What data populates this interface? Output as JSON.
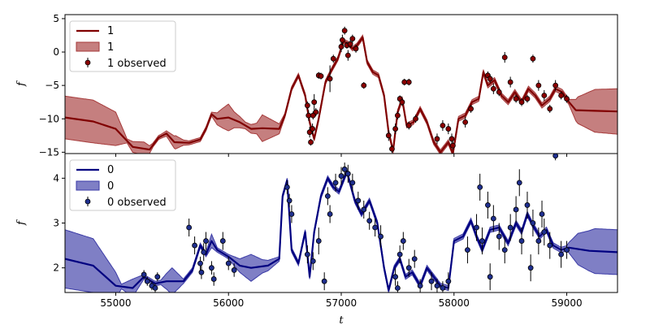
{
  "chart_data": [
    {
      "type": "line",
      "panel": "top",
      "xlabel": "",
      "ylabel": "f",
      "xlim": [
        54550,
        59450
      ],
      "ylim": [
        -15.2,
        5.6
      ],
      "yticks": [
        5,
        0,
        -5,
        -10,
        -15
      ],
      "xticks": [
        55000,
        56000,
        57000,
        58000,
        59000
      ],
      "show_xtick_labels": false,
      "grid": false,
      "legend_position": "upper-left",
      "colors": {
        "line": "#800000",
        "band": "#a63a3a",
        "points": "#8b0000"
      },
      "legend": [
        "1",
        "1",
        "1 observed"
      ],
      "mean": [
        [
          54550,
          -9.8
        ],
        [
          54800,
          -10.4
        ],
        [
          55000,
          -11.5
        ],
        [
          55150,
          -14.2
        ],
        [
          55300,
          -14.6
        ],
        [
          55380,
          -12.8
        ],
        [
          55450,
          -12.2
        ],
        [
          55520,
          -13.5
        ],
        [
          55650,
          -13.6
        ],
        [
          55750,
          -13.1
        ],
        [
          55800,
          -11.5
        ],
        [
          55850,
          -9.3
        ],
        [
          55900,
          -10.0
        ],
        [
          56000,
          -9.8
        ],
        [
          56100,
          -10.5
        ],
        [
          56200,
          -11.5
        ],
        [
          56300,
          -11.4
        ],
        [
          56450,
          -11.5
        ],
        [
          56500,
          -9.5
        ],
        [
          56560,
          -5.5
        ],
        [
          56620,
          -3.5
        ],
        [
          56680,
          -6.5
        ],
        [
          56720,
          -10.5
        ],
        [
          56760,
          -13.0
        ],
        [
          56800,
          -10.0
        ],
        [
          56860,
          -4.5
        ],
        [
          56920,
          -2.5
        ],
        [
          56970,
          -1.0
        ],
        [
          57020,
          1.6
        ],
        [
          57060,
          1.3
        ],
        [
          57100,
          0.5
        ],
        [
          57140,
          1.0
        ],
        [
          57190,
          2.2
        ],
        [
          57230,
          -1.5
        ],
        [
          57280,
          -3.0
        ],
        [
          57330,
          -3.5
        ],
        [
          57380,
          -6.5
        ],
        [
          57420,
          -12.0
        ],
        [
          57460,
          -14.8
        ],
        [
          57500,
          -9.0
        ],
        [
          57540,
          -7.0
        ],
        [
          57580,
          -11.0
        ],
        [
          57640,
          -10.5
        ],
        [
          57700,
          -8.5
        ],
        [
          57760,
          -10.5
        ],
        [
          57820,
          -13.5
        ],
        [
          57880,
          -15.0
        ],
        [
          57950,
          -13.5
        ],
        [
          57990,
          -15.2
        ],
        [
          58040,
          -10.0
        ],
        [
          58100,
          -9.5
        ],
        [
          58160,
          -7.5
        ],
        [
          58220,
          -7.0
        ],
        [
          58260,
          -3.0
        ],
        [
          58300,
          -5.0
        ],
        [
          58360,
          -4.2
        ],
        [
          58420,
          -6.5
        ],
        [
          58480,
          -7.5
        ],
        [
          58540,
          -6.0
        ],
        [
          58600,
          -7.5
        ],
        [
          58660,
          -5.5
        ],
        [
          58720,
          -6.5
        ],
        [
          58780,
          -8.0
        ],
        [
          58850,
          -7.0
        ],
        [
          58900,
          -5.5
        ],
        [
          58960,
          -6.0
        ],
        [
          59020,
          -7.5
        ],
        [
          59080,
          -8.7
        ],
        [
          59250,
          -8.8
        ],
        [
          59450,
          -8.9
        ]
      ],
      "band_halfwidth": [
        [
          54550,
          3.2
        ],
        [
          54800,
          3.2
        ],
        [
          55000,
          2.5
        ],
        [
          55100,
          0.3
        ],
        [
          55150,
          0.8
        ],
        [
          55250,
          1.0
        ],
        [
          55330,
          0.3
        ],
        [
          55400,
          0.3
        ],
        [
          55450,
          0.4
        ],
        [
          55530,
          1.0
        ],
        [
          55600,
          0.4
        ],
        [
          55650,
          0.3
        ],
        [
          55800,
          0.3
        ],
        [
          55850,
          0.3
        ],
        [
          55950,
          1.5
        ],
        [
          56000,
          2.0
        ],
        [
          56050,
          1.2
        ],
        [
          56150,
          0.5
        ],
        [
          56250,
          0.8
        ],
        [
          56300,
          2.0
        ],
        [
          56420,
          1.0
        ],
        [
          56500,
          0.3
        ],
        [
          59020,
          0.4
        ],
        [
          59100,
          2.0
        ],
        [
          59250,
          3.2
        ],
        [
          59450,
          3.4
        ]
      ],
      "observed": [
        [
          56700,
          -8.0,
          0.6
        ],
        [
          56710,
          -9.5,
          0.8
        ],
        [
          56720,
          -12.0,
          0.8
        ],
        [
          56730,
          -13.5,
          0.5
        ],
        [
          56745,
          -11.5,
          0.8
        ],
        [
          56760,
          -7.5,
          1.2
        ],
        [
          56775,
          -9.0,
          0.6
        ],
        [
          56800,
          -3.5,
          0.5
        ],
        [
          56820,
          -3.6,
          0.5
        ],
        [
          56900,
          -4.0,
          2.0
        ],
        [
          57000,
          0.8,
          0.8
        ],
        [
          57010,
          1.8,
          0.8
        ],
        [
          57030,
          3.2,
          0.6
        ],
        [
          57050,
          1.0,
          0.5
        ],
        [
          57060,
          -0.5,
          0.8
        ],
        [
          57080,
          1.2,
          0.6
        ],
        [
          57100,
          2.0,
          0.6
        ],
        [
          57200,
          -5.0,
          0.5
        ],
        [
          57420,
          -12.5,
          0.8
        ],
        [
          57450,
          -14.5,
          0.6
        ],
        [
          57480,
          -11.5,
          0.8
        ],
        [
          57500,
          -9.5,
          0.6
        ],
        [
          57520,
          -7.0,
          0.5
        ],
        [
          57540,
          -7.5,
          0.6
        ],
        [
          57560,
          -4.5,
          0.5
        ],
        [
          57600,
          -4.5,
          0.5
        ],
        [
          57850,
          -13.0,
          0.8
        ],
        [
          57900,
          -11.0,
          0.8
        ],
        [
          57950,
          -11.5,
          0.8
        ],
        [
          57980,
          -13.0,
          0.8
        ],
        [
          57990,
          -14.0,
          0.6
        ],
        [
          58100,
          -10.5,
          0.8
        ],
        [
          58150,
          -8.5,
          0.6
        ],
        [
          58300,
          -3.5,
          0.6
        ],
        [
          58320,
          -4.0,
          0.6
        ],
        [
          58350,
          -5.5,
          0.8
        ],
        [
          58450,
          -0.8,
          0.8
        ],
        [
          58500,
          -4.5,
          0.8
        ],
        [
          58550,
          -7.0,
          0.6
        ],
        [
          58600,
          -7.5,
          0.6
        ],
        [
          58650,
          -7.0,
          0.6
        ],
        [
          58700,
          -1.0,
          0.6
        ],
        [
          58750,
          -5.0,
          0.8
        ],
        [
          58800,
          -6.5,
          0.8
        ],
        [
          58850,
          -8.5,
          0.6
        ],
        [
          58900,
          -5.0,
          0.8
        ],
        [
          58950,
          -6.5,
          0.6
        ],
        [
          59000,
          -7.0,
          0.6
        ],
        [
          56930,
          -1.0,
          0.6
        ],
        [
          57130,
          0.5,
          0.6
        ],
        [
          56750,
          -9.5,
          0.6
        ],
        [
          57600,
          -11.0,
          0.6
        ],
        [
          57660,
          -10.0,
          0.6
        ],
        [
          58400,
          -6.0,
          0.6
        ]
      ]
    },
    {
      "type": "line",
      "panel": "bottom",
      "xlabel": "t",
      "ylabel": "f",
      "xlim": [
        54550,
        59450
      ],
      "ylim": [
        1.45,
        4.55
      ],
      "yticks": [
        4,
        3,
        2
      ],
      "xticks": [
        55000,
        56000,
        57000,
        58000,
        59000
      ],
      "show_xtick_labels": true,
      "grid": false,
      "legend_position": "upper-left",
      "colors": {
        "line": "#000080",
        "band": "#3a3aa6",
        "points": "#1f2f8f"
      },
      "legend": [
        "0",
        "0",
        "0 observed"
      ],
      "mean": [
        [
          54550,
          2.2
        ],
        [
          54800,
          2.05
        ],
        [
          55000,
          1.6
        ],
        [
          55150,
          1.55
        ],
        [
          55250,
          1.8
        ],
        [
          55350,
          1.65
        ],
        [
          55450,
          1.7
        ],
        [
          55600,
          1.7
        ],
        [
          55680,
          1.95
        ],
        [
          55750,
          2.5
        ],
        [
          55800,
          2.3
        ],
        [
          55850,
          2.6
        ],
        [
          55900,
          2.4
        ],
        [
          56000,
          2.25
        ],
        [
          56100,
          2.05
        ],
        [
          56200,
          2.0
        ],
        [
          56350,
          2.05
        ],
        [
          56450,
          2.2
        ],
        [
          56480,
          3.6
        ],
        [
          56520,
          3.95
        ],
        [
          56560,
          2.4
        ],
        [
          56620,
          2.1
        ],
        [
          56680,
          2.8
        ],
        [
          56720,
          1.8
        ],
        [
          56760,
          2.8
        ],
        [
          56820,
          3.6
        ],
        [
          56880,
          4.0
        ],
        [
          56930,
          3.8
        ],
        [
          56980,
          3.7
        ],
        [
          57050,
          4.15
        ],
        [
          57120,
          3.5
        ],
        [
          57180,
          3.2
        ],
        [
          57250,
          3.5
        ],
        [
          57320,
          3.0
        ],
        [
          57380,
          2.0
        ],
        [
          57420,
          1.5
        ],
        [
          57470,
          2.0
        ],
        [
          57520,
          2.2
        ],
        [
          57570,
          1.8
        ],
        [
          57630,
          1.9
        ],
        [
          57700,
          1.6
        ],
        [
          57760,
          2.0
        ],
        [
          57820,
          1.8
        ],
        [
          57880,
          1.6
        ],
        [
          57950,
          1.55
        ],
        [
          58000,
          2.6
        ],
        [
          58080,
          2.7
        ],
        [
          58150,
          3.05
        ],
        [
          58200,
          2.7
        ],
        [
          58250,
          2.4
        ],
        [
          58320,
          2.85
        ],
        [
          58400,
          2.9
        ],
        [
          58480,
          2.55
        ],
        [
          58550,
          3.0
        ],
        [
          58600,
          2.8
        ],
        [
          58650,
          3.2
        ],
        [
          58700,
          2.95
        ],
        [
          58760,
          2.7
        ],
        [
          58820,
          2.85
        ],
        [
          58880,
          2.5
        ],
        [
          58950,
          2.4
        ],
        [
          59020,
          2.45
        ],
        [
          59200,
          2.38
        ],
        [
          59450,
          2.35
        ]
      ],
      "band_halfwidth": [
        [
          54550,
          0.65
        ],
        [
          54800,
          0.6
        ],
        [
          55000,
          0.3
        ],
        [
          55050,
          0.05
        ],
        [
          55150,
          0.2
        ],
        [
          55250,
          0.05
        ],
        [
          55400,
          0.05
        ],
        [
          55500,
          0.3
        ],
        [
          55600,
          0.05
        ],
        [
          55800,
          0.05
        ],
        [
          55850,
          0.15
        ],
        [
          55900,
          0.05
        ],
        [
          56000,
          0.05
        ],
        [
          56100,
          0.15
        ],
        [
          56200,
          0.3
        ],
        [
          56300,
          0.15
        ],
        [
          56450,
          0.05
        ],
        [
          59000,
          0.06
        ],
        [
          59100,
          0.35
        ],
        [
          59250,
          0.5
        ],
        [
          59450,
          0.5
        ]
      ],
      "observed": [
        [
          55250,
          1.85,
          0.1
        ],
        [
          55280,
          1.7,
          0.1
        ],
        [
          55320,
          1.6,
          0.1
        ],
        [
          55350,
          1.55,
          0.1
        ],
        [
          55370,
          1.8,
          0.1
        ],
        [
          55650,
          2.9,
          0.2
        ],
        [
          55700,
          2.5,
          0.2
        ],
        [
          55750,
          2.1,
          0.15
        ],
        [
          55760,
          1.9,
          0.15
        ],
        [
          55780,
          2.35,
          0.2
        ],
        [
          55800,
          2.6,
          0.2
        ],
        [
          55850,
          2.0,
          0.15
        ],
        [
          55950,
          2.6,
          0.2
        ],
        [
          56000,
          2.1,
          0.15
        ],
        [
          56050,
          1.95,
          0.15
        ],
        [
          56520,
          3.8,
          0.15
        ],
        [
          56540,
          3.5,
          0.15
        ],
        [
          56560,
          3.2,
          0.2
        ],
        [
          56700,
          2.3,
          0.2
        ],
        [
          56750,
          2.15,
          0.2
        ],
        [
          56800,
          2.6,
          0.3
        ],
        [
          56850,
          1.7,
          0.2
        ],
        [
          56900,
          3.2,
          0.2
        ],
        [
          56950,
          3.9,
          0.2
        ],
        [
          57000,
          4.05,
          0.2
        ],
        [
          57030,
          4.2,
          0.15
        ],
        [
          57060,
          4.1,
          0.2
        ],
        [
          57100,
          3.9,
          0.2
        ],
        [
          57150,
          3.5,
          0.2
        ],
        [
          57200,
          3.3,
          0.2
        ],
        [
          57250,
          3.05,
          0.2
        ],
        [
          57300,
          2.9,
          0.2
        ],
        [
          57350,
          2.7,
          0.25
        ],
        [
          57480,
          1.8,
          0.2
        ],
        [
          57500,
          1.55,
          0.15
        ],
        [
          57520,
          2.3,
          0.2
        ],
        [
          57550,
          2.6,
          0.2
        ],
        [
          57600,
          2.0,
          0.2
        ],
        [
          57650,
          2.2,
          0.2
        ],
        [
          57700,
          1.6,
          0.15
        ],
        [
          57800,
          1.7,
          0.2
        ],
        [
          57850,
          1.6,
          0.15
        ],
        [
          57900,
          1.55,
          0.15
        ],
        [
          57950,
          1.7,
          0.2
        ],
        [
          58200,
          2.9,
          0.3
        ],
        [
          58250,
          2.6,
          0.3
        ],
        [
          58300,
          3.4,
          0.3
        ],
        [
          58350,
          3.1,
          0.3
        ],
        [
          58400,
          2.7,
          0.3
        ],
        [
          58450,
          2.4,
          0.3
        ],
        [
          58500,
          2.9,
          0.3
        ],
        [
          58550,
          3.3,
          0.3
        ],
        [
          58600,
          2.6,
          0.3
        ],
        [
          58650,
          3.4,
          0.3
        ],
        [
          58700,
          3.0,
          0.3
        ],
        [
          58750,
          2.6,
          0.3
        ],
        [
          58800,
          2.8,
          0.3
        ],
        [
          58850,
          2.5,
          0.3
        ],
        [
          58900,
          4.5,
          0.1
        ],
        [
          58950,
          2.3,
          0.3
        ],
        [
          59000,
          2.4,
          0.2
        ],
        [
          55870,
          1.75,
          0.15
        ],
        [
          56880,
          3.6,
          0.2
        ],
        [
          58120,
          2.4,
          0.3
        ],
        [
          58230,
          3.8,
          0.3
        ],
        [
          58580,
          3.9,
          0.3
        ],
        [
          58680,
          2.0,
          0.3
        ],
        [
          58320,
          1.8,
          0.3
        ],
        [
          58780,
          3.2,
          0.3
        ]
      ]
    }
  ]
}
